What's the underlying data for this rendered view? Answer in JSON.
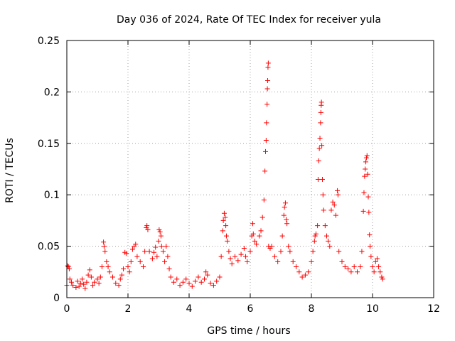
{
  "chart_data": {
    "type": "scatter",
    "title": "Day 036 of 2024, Rate Of TEC Index for receiver yula",
    "xlabel": "GPS time / hours",
    "ylabel": "ROTI / TECUs",
    "xlim": [
      0,
      12
    ],
    "ylim": [
      0,
      0.25
    ],
    "xticks": [
      0,
      2,
      4,
      6,
      8,
      10,
      12
    ],
    "yticks": [
      0,
      0.05,
      0.1,
      0.15,
      0.2,
      0.25
    ],
    "xtick_labels": [
      "0",
      "2",
      "4",
      "6",
      "8",
      "10",
      "12"
    ],
    "ytick_labels": [
      "0",
      "0.05",
      "0.1",
      "0.15",
      "0.2",
      "0.25"
    ],
    "grid": true,
    "marker": "+",
    "color": "#ff0000",
    "series": [
      {
        "name": "ROTI",
        "points": [
          [
            0.0,
            0.012
          ],
          [
            0.03,
            0.031
          ],
          [
            0.05,
            0.03
          ],
          [
            0.08,
            0.028
          ],
          [
            0.1,
            0.018
          ],
          [
            0.15,
            0.015
          ],
          [
            0.2,
            0.012
          ],
          [
            0.3,
            0.01
          ],
          [
            0.35,
            0.016
          ],
          [
            0.4,
            0.011
          ],
          [
            0.45,
            0.014
          ],
          [
            0.5,
            0.018
          ],
          [
            0.55,
            0.013
          ],
          [
            0.6,
            0.009
          ],
          [
            0.65,
            0.015
          ],
          [
            0.7,
            0.022
          ],
          [
            0.75,
            0.027
          ],
          [
            0.8,
            0.02
          ],
          [
            0.85,
            0.012
          ],
          [
            0.9,
            0.015
          ],
          [
            1.0,
            0.018
          ],
          [
            1.05,
            0.014
          ],
          [
            1.1,
            0.02
          ],
          [
            1.15,
            0.03
          ],
          [
            1.2,
            0.054
          ],
          [
            1.22,
            0.05
          ],
          [
            1.25,
            0.045
          ],
          [
            1.3,
            0.035
          ],
          [
            1.35,
            0.03
          ],
          [
            1.4,
            0.025
          ],
          [
            1.5,
            0.02
          ],
          [
            1.6,
            0.014
          ],
          [
            1.7,
            0.012
          ],
          [
            1.75,
            0.018
          ],
          [
            1.8,
            0.022
          ],
          [
            1.85,
            0.028
          ],
          [
            1.9,
            0.044
          ],
          [
            1.95,
            0.043
          ],
          [
            2.0,
            0.03
          ],
          [
            2.05,
            0.025
          ],
          [
            2.1,
            0.035
          ],
          [
            2.15,
            0.047
          ],
          [
            2.2,
            0.05
          ],
          [
            2.25,
            0.052
          ],
          [
            2.3,
            0.04
          ],
          [
            2.4,
            0.035
          ],
          [
            2.5,
            0.03
          ],
          [
            2.55,
            0.045
          ],
          [
            2.6,
            0.068
          ],
          [
            2.62,
            0.07
          ],
          [
            2.65,
            0.066
          ],
          [
            2.7,
            0.045
          ],
          [
            2.8,
            0.038
          ],
          [
            2.85,
            0.044
          ],
          [
            2.9,
            0.049
          ],
          [
            2.95,
            0.04
          ],
          [
            3.0,
            0.055
          ],
          [
            3.02,
            0.066
          ],
          [
            3.05,
            0.064
          ],
          [
            3.08,
            0.06
          ],
          [
            3.1,
            0.05
          ],
          [
            3.15,
            0.045
          ],
          [
            3.2,
            0.035
          ],
          [
            3.25,
            0.05
          ],
          [
            3.3,
            0.04
          ],
          [
            3.35,
            0.028
          ],
          [
            3.4,
            0.02
          ],
          [
            3.5,
            0.015
          ],
          [
            3.6,
            0.018
          ],
          [
            3.7,
            0.012
          ],
          [
            3.8,
            0.015
          ],
          [
            3.9,
            0.018
          ],
          [
            4.0,
            0.014
          ],
          [
            4.1,
            0.011
          ],
          [
            4.2,
            0.016
          ],
          [
            4.3,
            0.02
          ],
          [
            4.4,
            0.015
          ],
          [
            4.5,
            0.018
          ],
          [
            4.55,
            0.025
          ],
          [
            4.6,
            0.022
          ],
          [
            4.7,
            0.014
          ],
          [
            4.8,
            0.012
          ],
          [
            4.9,
            0.016
          ],
          [
            5.0,
            0.02
          ],
          [
            5.05,
            0.04
          ],
          [
            5.1,
            0.065
          ],
          [
            5.12,
            0.075
          ],
          [
            5.15,
            0.082
          ],
          [
            5.18,
            0.078
          ],
          [
            5.2,
            0.07
          ],
          [
            5.22,
            0.06
          ],
          [
            5.25,
            0.055
          ],
          [
            5.3,
            0.045
          ],
          [
            5.35,
            0.038
          ],
          [
            5.4,
            0.033
          ],
          [
            5.5,
            0.04
          ],
          [
            5.6,
            0.036
          ],
          [
            5.7,
            0.042
          ],
          [
            5.8,
            0.048
          ],
          [
            5.85,
            0.04
          ],
          [
            5.9,
            0.035
          ],
          [
            6.0,
            0.045
          ],
          [
            6.05,
            0.06
          ],
          [
            6.08,
            0.072
          ],
          [
            6.1,
            0.062
          ],
          [
            6.15,
            0.055
          ],
          [
            6.2,
            0.052
          ],
          [
            6.3,
            0.06
          ],
          [
            6.35,
            0.065
          ],
          [
            6.4,
            0.078
          ],
          [
            6.45,
            0.095
          ],
          [
            6.48,
            0.123
          ],
          [
            6.5,
            0.142
          ],
          [
            6.52,
            0.153
          ],
          [
            6.53,
            0.17
          ],
          [
            6.55,
            0.188
          ],
          [
            6.56,
            0.203
          ],
          [
            6.57,
            0.211
          ],
          [
            6.58,
            0.224
          ],
          [
            6.59,
            0.228
          ],
          [
            6.6,
            0.05
          ],
          [
            6.65,
            0.048
          ],
          [
            6.7,
            0.05
          ],
          [
            6.8,
            0.04
          ],
          [
            6.9,
            0.035
          ],
          [
            7.0,
            0.045
          ],
          [
            7.05,
            0.06
          ],
          [
            7.1,
            0.08
          ],
          [
            7.12,
            0.088
          ],
          [
            7.15,
            0.092
          ],
          [
            7.18,
            0.076
          ],
          [
            7.2,
            0.072
          ],
          [
            7.25,
            0.05
          ],
          [
            7.3,
            0.045
          ],
          [
            7.4,
            0.035
          ],
          [
            7.5,
            0.03
          ],
          [
            7.6,
            0.025
          ],
          [
            7.7,
            0.02
          ],
          [
            7.8,
            0.022
          ],
          [
            7.9,
            0.025
          ],
          [
            8.0,
            0.035
          ],
          [
            8.05,
            0.045
          ],
          [
            8.1,
            0.055
          ],
          [
            8.12,
            0.06
          ],
          [
            8.15,
            0.062
          ],
          [
            8.2,
            0.07
          ],
          [
            8.22,
            0.115
          ],
          [
            8.24,
            0.133
          ],
          [
            8.26,
            0.145
          ],
          [
            8.28,
            0.155
          ],
          [
            8.3,
            0.17
          ],
          [
            8.31,
            0.18
          ],
          [
            8.32,
            0.187
          ],
          [
            8.33,
            0.19
          ],
          [
            8.34,
            0.148
          ],
          [
            8.36,
            0.115
          ],
          [
            8.38,
            0.1
          ],
          [
            8.4,
            0.085
          ],
          [
            8.45,
            0.07
          ],
          [
            8.5,
            0.06
          ],
          [
            8.55,
            0.055
          ],
          [
            8.6,
            0.05
          ],
          [
            8.65,
            0.085
          ],
          [
            8.7,
            0.093
          ],
          [
            8.75,
            0.09
          ],
          [
            8.8,
            0.08
          ],
          [
            8.85,
            0.104
          ],
          [
            8.87,
            0.1
          ],
          [
            8.9,
            0.045
          ],
          [
            9.0,
            0.035
          ],
          [
            9.1,
            0.03
          ],
          [
            9.2,
            0.028
          ],
          [
            9.3,
            0.025
          ],
          [
            9.4,
            0.03
          ],
          [
            9.5,
            0.025
          ],
          [
            9.6,
            0.03
          ],
          [
            9.65,
            0.045
          ],
          [
            9.7,
            0.084
          ],
          [
            9.72,
            0.102
          ],
          [
            9.74,
            0.118
          ],
          [
            9.76,
            0.125
          ],
          [
            9.78,
            0.132
          ],
          [
            9.8,
            0.136
          ],
          [
            9.82,
            0.138
          ],
          [
            9.84,
            0.12
          ],
          [
            9.86,
            0.098
          ],
          [
            9.88,
            0.083
          ],
          [
            9.9,
            0.061
          ],
          [
            9.92,
            0.05
          ],
          [
            9.95,
            0.04
          ],
          [
            10.0,
            0.03
          ],
          [
            10.05,
            0.025
          ],
          [
            10.1,
            0.035
          ],
          [
            10.15,
            0.038
          ],
          [
            10.2,
            0.03
          ],
          [
            10.25,
            0.025
          ],
          [
            10.3,
            0.02
          ],
          [
            10.33,
            0.018
          ]
        ]
      }
    ]
  }
}
